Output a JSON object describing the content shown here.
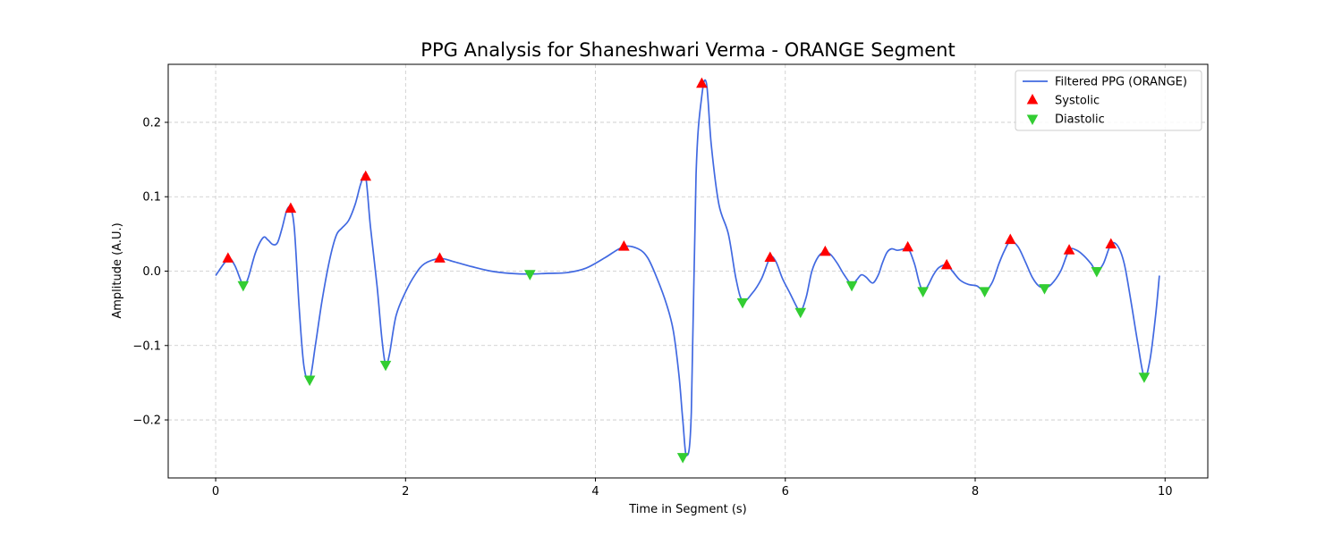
{
  "chart_data": {
    "type": "line",
    "title": "PPG Analysis for Shaneshwari Verma - ORANGE Segment",
    "xlabel": "Time in Segment (s)",
    "ylabel": "Amplitude (A.U.)",
    "xlim": [
      -0.5,
      10.45
    ],
    "ylim": [
      -0.278,
      0.278
    ],
    "x_ticks": [
      0,
      2,
      4,
      6,
      8,
      10
    ],
    "x_tick_labels": [
      "0",
      "2",
      "4",
      "6",
      "8",
      "10"
    ],
    "y_ticks": [
      -0.2,
      -0.1,
      0.0,
      0.1,
      0.2
    ],
    "y_tick_labels": [
      "−0.2",
      "−0.1",
      "0.0",
      "0.1",
      "0.2"
    ],
    "grid": true,
    "legend_position": "top-right",
    "series": [
      {
        "name": "Filtered PPG (ORANGE)",
        "kind": "line",
        "color": "#4169e1",
        "x": [
          0,
          0.13,
          0.2,
          0.29,
          0.34,
          0.42,
          0.5,
          0.55,
          0.6,
          0.65,
          0.7,
          0.75,
          0.79,
          0.83,
          0.88,
          0.93,
          0.99,
          1.05,
          1.12,
          1.2,
          1.27,
          1.33,
          1.4,
          1.47,
          1.53,
          1.58,
          1.63,
          1.7,
          1.75,
          1.79,
          1.83,
          1.9,
          2.0,
          2.1,
          2.2,
          2.36,
          2.5,
          2.7,
          2.9,
          3.1,
          3.3,
          3.5,
          3.7,
          3.9,
          4.1,
          4.3,
          4.45,
          4.55,
          4.65,
          4.75,
          4.82,
          4.88,
          4.92,
          4.96,
          5.01,
          5.06,
          5.12,
          5.17,
          5.22,
          5.3,
          5.4,
          5.48,
          5.55,
          5.65,
          5.75,
          5.84,
          5.9,
          5.97,
          6.05,
          6.12,
          6.16,
          6.22,
          6.28,
          6.35,
          6.42,
          6.48,
          6.55,
          6.62,
          6.7,
          6.75,
          6.8,
          6.85,
          6.92,
          6.98,
          7.02,
          7.07,
          7.12,
          7.18,
          7.25,
          7.29,
          7.36,
          7.41,
          7.45,
          7.5,
          7.56,
          7.62,
          7.7,
          7.76,
          7.84,
          7.93,
          8.02,
          8.1,
          8.18,
          8.25,
          8.31,
          8.37,
          8.45,
          8.53,
          8.6,
          8.67,
          8.73,
          8.8,
          8.9,
          8.99,
          9.07,
          9.15,
          9.22,
          9.28,
          9.35,
          9.43,
          9.5,
          9.57,
          9.64,
          9.71,
          9.78,
          9.84,
          9.9,
          9.94
        ],
        "y": [
          -0.006,
          0.016,
          0.008,
          -0.019,
          -0.01,
          0.025,
          0.045,
          0.042,
          0.036,
          0.038,
          0.058,
          0.082,
          0.084,
          0.055,
          -0.05,
          -0.128,
          -0.146,
          -0.1,
          -0.04,
          0.015,
          0.048,
          0.058,
          0.068,
          0.09,
          0.118,
          0.127,
          0.06,
          -0.02,
          -0.09,
          -0.126,
          -0.112,
          -0.06,
          -0.028,
          -0.005,
          0.01,
          0.017,
          0.013,
          0.006,
          0.0,
          -0.003,
          -0.004,
          -0.003,
          -0.002,
          0.004,
          0.018,
          0.033,
          0.03,
          0.018,
          -0.01,
          -0.045,
          -0.08,
          -0.14,
          -0.2,
          -0.248,
          -0.19,
          0.13,
          0.235,
          0.252,
          0.17,
          0.09,
          0.05,
          -0.01,
          -0.04,
          -0.03,
          -0.01,
          0.018,
          0.013,
          -0.01,
          -0.03,
          -0.048,
          -0.055,
          -0.035,
          0.0,
          0.02,
          0.026,
          0.022,
          0.01,
          -0.005,
          -0.018,
          -0.012,
          -0.005,
          -0.008,
          -0.016,
          -0.005,
          0.01,
          0.025,
          0.03,
          0.028,
          0.03,
          0.032,
          0.01,
          -0.015,
          -0.027,
          -0.02,
          -0.005,
          0.005,
          0.008,
          0.0,
          -0.012,
          -0.018,
          -0.02,
          -0.027,
          -0.015,
          0.01,
          0.028,
          0.04,
          0.033,
          0.012,
          -0.008,
          -0.02,
          -0.022,
          -0.018,
          0.0,
          0.028,
          0.028,
          0.02,
          0.01,
          0.0,
          0.01,
          0.036,
          0.034,
          0.01,
          -0.04,
          -0.095,
          -0.142,
          -0.12,
          -0.06,
          -0.006
        ]
      },
      {
        "name": "Systolic",
        "kind": "marker",
        "marker": "triangle-up",
        "color": "#ff0000",
        "x": [
          0.13,
          0.79,
          1.58,
          2.36,
          4.3,
          5.12,
          5.84,
          6.42,
          7.29,
          7.7,
          8.37,
          8.99,
          9.43
        ],
        "y": [
          0.017,
          0.084,
          0.127,
          0.017,
          0.033,
          0.252,
          0.018,
          0.026,
          0.032,
          0.008,
          0.042,
          0.028,
          0.036
        ]
      },
      {
        "name": "Diastolic",
        "kind": "marker",
        "marker": "triangle-down",
        "color": "#32cd32",
        "x": [
          0.29,
          0.99,
          1.79,
          3.31,
          4.92,
          5.55,
          6.16,
          6.7,
          7.45,
          8.1,
          8.73,
          9.28,
          9.78
        ],
        "y": [
          -0.019,
          -0.146,
          -0.126,
          -0.004,
          -0.25,
          -0.042,
          -0.055,
          -0.019,
          -0.027,
          -0.027,
          -0.023,
          0.0,
          -0.142
        ]
      }
    ]
  }
}
